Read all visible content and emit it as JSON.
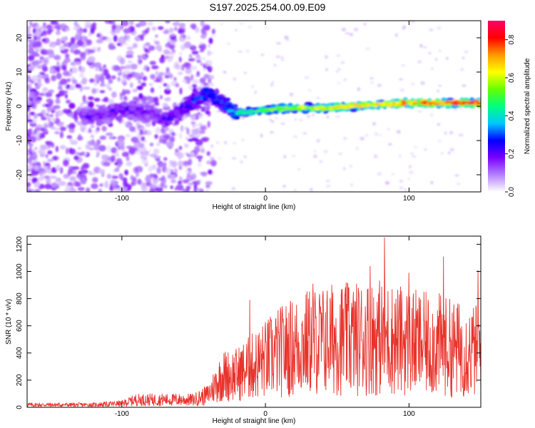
{
  "title": "S197.2025.254.00.09.E09",
  "colors": {
    "line": "#e8332b",
    "axis": "#000000"
  },
  "chart_data": [
    {
      "type": "heatmap",
      "title": "S197.2025.254.00.09.E09",
      "xlabel": "Height of straight line (km)",
      "ylabel": "Frequency (Hz)",
      "xlim": [
        -166,
        150
      ],
      "ylim": [
        -25,
        25
      ],
      "xticks": [
        -100,
        0,
        100
      ],
      "xtick_labels": [
        "-100",
        "0",
        "100"
      ],
      "yticks": [
        -20,
        -10,
        0,
        10,
        20
      ],
      "ytick_labels": [
        "-20",
        "-10",
        "0",
        "10",
        "20"
      ],
      "colorbar": {
        "label": "Normalized spectral amplitude",
        "range": [
          0.0,
          0.9
        ],
        "ticks": [
          0.0,
          0.2,
          0.4,
          0.6,
          0.8
        ],
        "tick_labels": [
          "0.0",
          "0.2",
          "0.4",
          "0.6",
          "0.8"
        ],
        "colormap": [
          "#ffffff",
          "#b380ff",
          "#7a00ff",
          "#0000ff",
          "#00c8ff",
          "#00ff80",
          "#66ff00",
          "#ffff00",
          "#ff9900",
          "#ff0000",
          "#ff0066"
        ]
      },
      "ridge": [
        {
          "x": -120,
          "y": -3,
          "amp": 0.2
        },
        {
          "x": -100,
          "y": -1,
          "amp": 0.25
        },
        {
          "x": -80,
          "y": -2,
          "amp": 0.2
        },
        {
          "x": -70,
          "y": -4,
          "amp": 0.25
        },
        {
          "x": -55,
          "y": 0,
          "amp": 0.3
        },
        {
          "x": -40,
          "y": 4,
          "amp": 0.35
        },
        {
          "x": -30,
          "y": 1,
          "amp": 0.35
        },
        {
          "x": -20,
          "y": -2,
          "amp": 0.45
        },
        {
          "x": 0,
          "y": -1,
          "amp": 0.55
        },
        {
          "x": 20,
          "y": -0.5,
          "amp": 0.6
        },
        {
          "x": 40,
          "y": -0.5,
          "amp": 0.65
        },
        {
          "x": 60,
          "y": 0,
          "amp": 0.65
        },
        {
          "x": 80,
          "y": 0.5,
          "amp": 0.7
        },
        {
          "x": 100,
          "y": 1,
          "amp": 0.75
        },
        {
          "x": 120,
          "y": 1,
          "amp": 0.8
        },
        {
          "x": 150,
          "y": 1,
          "amp": 0.85
        }
      ]
    },
    {
      "type": "line",
      "xlabel": "Height of straight line (km)",
      "ylabel": "SNR (10 * v/v)",
      "xlim": [
        -166,
        150
      ],
      "ylim": [
        0,
        1260
      ],
      "xticks": [
        -100,
        0,
        100
      ],
      "xtick_labels": [
        "-100",
        "0",
        "100"
      ],
      "yticks": [
        0,
        200,
        400,
        600,
        800,
        1000,
        1200
      ],
      "ytick_labels": [
        "0",
        "200",
        "400",
        "600",
        "800",
        "1000",
        "1200"
      ],
      "envelope": {
        "x": [
          -166,
          -120,
          -100,
          -90,
          -80,
          -60,
          -50,
          -40,
          -35,
          -30,
          -20,
          -10,
          0,
          10,
          20,
          30,
          40,
          50,
          60,
          70,
          80,
          90,
          100,
          110,
          120,
          130,
          140,
          150
        ],
        "y": [
          20,
          20,
          30,
          60,
          60,
          60,
          60,
          100,
          180,
          250,
          260,
          320,
          380,
          440,
          480,
          520,
          530,
          550,
          540,
          560,
          560,
          540,
          520,
          500,
          500,
          470,
          450,
          450
        ]
      },
      "peaks": [
        {
          "x": 83,
          "y": 1250
        },
        {
          "x": 124,
          "y": 1110
        },
        {
          "x": 148,
          "y": 1010
        },
        {
          "x": 73,
          "y": 1040
        },
        {
          "x": 33,
          "y": 910
        },
        {
          "x": -11,
          "y": 790
        },
        {
          "x": 58,
          "y": 880
        },
        {
          "x": 100,
          "y": 990
        }
      ]
    }
  ]
}
